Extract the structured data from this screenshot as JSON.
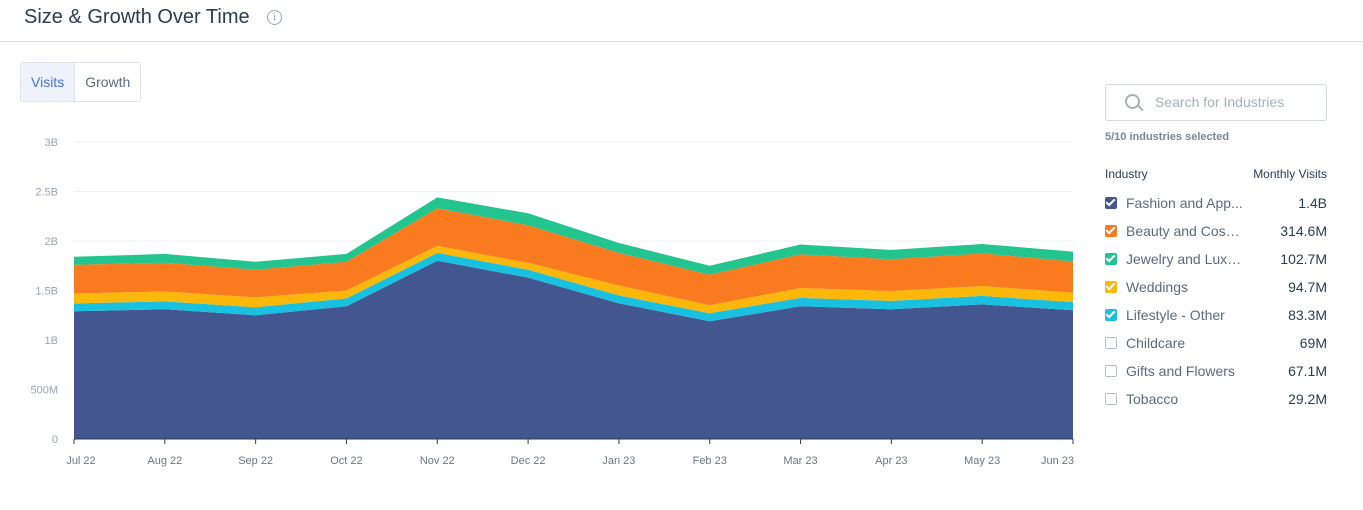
{
  "header": {
    "title": "Size & Growth Over Time",
    "info_icon": "info-icon"
  },
  "tabs": [
    {
      "label": "Visits",
      "active": true
    },
    {
      "label": "Growth",
      "active": false
    }
  ],
  "search": {
    "placeholder": "Search for Industries",
    "icon": "search-icon"
  },
  "selected_text": "5/10 industries selected",
  "legend_header": {
    "industry": "Industry",
    "monthly_visits": "Monthly Visits"
  },
  "industries": [
    {
      "name": "Fashion and App...",
      "value": "1.4B",
      "checked": true,
      "color": "#43568f"
    },
    {
      "name": "Beauty and Cosm...",
      "value": "314.6M",
      "checked": true,
      "color": "#fa7a1f"
    },
    {
      "name": "Jewelry and Luxu...",
      "value": "102.7M",
      "checked": true,
      "color": "#23c48e"
    },
    {
      "name": "Weddings",
      "value": "94.7M",
      "checked": true,
      "color": "#fbb80a"
    },
    {
      "name": "Lifestyle - Other",
      "value": "83.3M",
      "checked": true,
      "color": "#19c0e0"
    },
    {
      "name": "Childcare",
      "value": "69M",
      "checked": false
    },
    {
      "name": "Gifts and Flowers",
      "value": "67.1M",
      "checked": false
    },
    {
      "name": "Tobacco",
      "value": "29.2M",
      "checked": false
    }
  ],
  "chart_data": {
    "type": "area",
    "stacked": true,
    "categories": [
      "Jul 22",
      "Aug 22",
      "Sep 22",
      "Oct 22",
      "Nov 22",
      "Dec 22",
      "Jan 23",
      "Feb 23",
      "Mar 23",
      "Apr 23",
      "May 23",
      "Jun 23"
    ],
    "ylim": [
      0,
      3000000000
    ],
    "yticks": [
      0,
      500000000,
      1000000000,
      1500000000,
      2000000000,
      2500000000,
      3000000000
    ],
    "yticklabels": [
      "0",
      "500M",
      "1B",
      "1.5B",
      "2B",
      "2.5B",
      "3B"
    ],
    "grid": true,
    "series": [
      {
        "name": "Fashion and App...",
        "color": "#43568f",
        "values": [
          1290000000,
          1310000000,
          1250000000,
          1340000000,
          1800000000,
          1630000000,
          1370000000,
          1190000000,
          1340000000,
          1310000000,
          1360000000,
          1300000000
        ]
      },
      {
        "name": "Lifestyle - Other",
        "color": "#19c0e0",
        "values": [
          80000000,
          80000000,
          80000000,
          80000000,
          80000000,
          80000000,
          80000000,
          80000000,
          85000000,
          85000000,
          85000000,
          83000000
        ]
      },
      {
        "name": "Weddings",
        "color": "#fbb80a",
        "values": [
          100000000,
          100000000,
          100000000,
          80000000,
          70000000,
          70000000,
          100000000,
          80000000,
          100000000,
          100000000,
          100000000,
          95000000
        ]
      },
      {
        "name": "Beauty and Cosm...",
        "color": "#fa7a1f",
        "values": [
          290000000,
          290000000,
          280000000,
          290000000,
          380000000,
          380000000,
          330000000,
          310000000,
          340000000,
          320000000,
          330000000,
          315000000
        ]
      },
      {
        "name": "Jewelry and Luxu...",
        "color": "#23c48e",
        "values": [
          80000000,
          90000000,
          80000000,
          80000000,
          110000000,
          120000000,
          100000000,
          90000000,
          100000000,
          95000000,
          95000000,
          100000000
        ]
      }
    ]
  }
}
